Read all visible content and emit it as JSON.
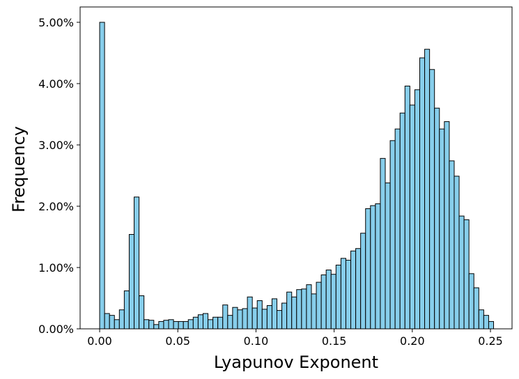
{
  "chart_data": {
    "type": "histogram",
    "xlabel": "Lyapunov Exponent",
    "ylabel": "Frequency",
    "color": "#87ceeb",
    "edgecolor": "#000000",
    "bins": [
      0,
      0.00315,
      0.0063,
      0.00945,
      0.0126,
      0.01575,
      0.0189,
      0.02205,
      0.0252,
      0.02835,
      0.0315,
      0.03465,
      0.0378,
      0.04095,
      0.0441,
      0.04725,
      0.0504,
      0.05355,
      0.0567,
      0.05985,
      0.063,
      0.06615,
      0.0693,
      0.07245,
      0.0756,
      0.07875,
      0.0819,
      0.08505,
      0.0882,
      0.09135,
      0.0945,
      0.09765,
      0.1008,
      0.10395,
      0.1071,
      0.11025,
      0.1134,
      0.11655,
      0.1197,
      0.12285,
      0.126,
      0.12915,
      0.1323,
      0.13545,
      0.1386,
      0.14175,
      0.1449,
      0.14805,
      0.1512,
      0.15435,
      0.1575,
      0.16065,
      0.1638,
      0.16695,
      0.1701,
      0.17325,
      0.1764,
      0.17955,
      0.1827,
      0.18585,
      0.189,
      0.19215,
      0.1953,
      0.19845,
      0.2016,
      0.20475,
      0.2079,
      0.21105,
      0.2142,
      0.21735,
      0.2205,
      0.22365,
      0.2268,
      0.22995,
      0.2331,
      0.23625,
      0.2394,
      0.24255,
      0.2457,
      0.24885,
      0.252
    ],
    "values": [
      5.0,
      0.25,
      0.22,
      0.15,
      0.31,
      0.62,
      1.54,
      2.15,
      0.54,
      0.15,
      0.14,
      0.07,
      0.12,
      0.14,
      0.15,
      0.12,
      0.12,
      0.12,
      0.15,
      0.19,
      0.23,
      0.25,
      0.15,
      0.19,
      0.19,
      0.39,
      0.22,
      0.35,
      0.31,
      0.33,
      0.52,
      0.34,
      0.46,
      0.32,
      0.38,
      0.49,
      0.3,
      0.42,
      0.6,
      0.52,
      0.64,
      0.65,
      0.72,
      0.57,
      0.76,
      0.88,
      0.96,
      0.89,
      1.04,
      1.15,
      1.12,
      1.27,
      1.31,
      1.56,
      1.96,
      2.01,
      2.04,
      2.78,
      2.38,
      3.07,
      3.26,
      3.52,
      3.96,
      3.65,
      3.9,
      4.42,
      4.56,
      4.23,
      3.6,
      3.26,
      3.38,
      2.74,
      2.49,
      1.84,
      1.78,
      0.9,
      0.67,
      0.31,
      0.22,
      0.12
    ],
    "xlim": [
      -0.0125,
      0.2638
    ],
    "ylim": [
      0,
      5.25
    ],
    "xticks": [
      {
        "value": 0,
        "label": "0.00"
      },
      {
        "value": 0.05,
        "label": "0.05"
      },
      {
        "value": 0.1,
        "label": "0.10"
      },
      {
        "value": 0.15,
        "label": "0.15"
      },
      {
        "value": 0.2,
        "label": "0.20"
      },
      {
        "value": 0.25,
        "label": "0.25"
      }
    ],
    "yticks": [
      {
        "value": 0,
        "label": "0.00%"
      },
      {
        "value": 1,
        "label": "1.00%"
      },
      {
        "value": 2,
        "label": "2.00%"
      },
      {
        "value": 3,
        "label": "3.00%"
      },
      {
        "value": 4,
        "label": "4.00%"
      },
      {
        "value": 5,
        "label": "5.00%"
      }
    ]
  }
}
